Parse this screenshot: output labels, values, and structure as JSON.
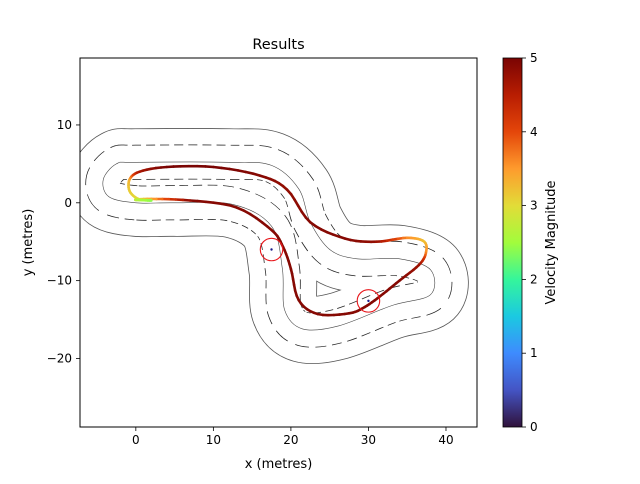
{
  "chart_data": {
    "type": "line",
    "title": "Results",
    "xlabel": "x (metres)",
    "ylabel": "y (metres)",
    "xlim": [
      -7.2,
      44.0
    ],
    "ylim": [
      -28.8,
      18.6
    ],
    "xticks": [
      0,
      10,
      20,
      30,
      40
    ],
    "yticks": [
      10,
      0,
      -10,
      -20
    ],
    "xtick_labels": [
      "0",
      "10",
      "20",
      "30",
      "40"
    ],
    "ytick_labels": [
      "10",
      "0",
      "−10",
      "−20"
    ],
    "grid": false,
    "colorbar": {
      "label": "Velocity Magnitude",
      "range": [
        0,
        5
      ],
      "ticks": [
        0,
        1,
        2,
        3,
        4,
        5
      ],
      "tick_labels": [
        "0",
        "1",
        "2",
        "3",
        "4",
        "5"
      ],
      "colormap": "turbo"
    },
    "track": {
      "centerline": [
        [
          0,
          0
        ],
        [
          -3.5,
          0.8
        ],
        [
          -4.2,
          3
        ],
        [
          -2.5,
          5
        ],
        [
          0,
          5.2
        ],
        [
          12,
          5.2
        ],
        [
          17.5,
          4.8
        ],
        [
          21,
          1.8
        ],
        [
          22.5,
          -2.5
        ],
        [
          25,
          -6
        ],
        [
          28.5,
          -7.2
        ],
        [
          34,
          -7.2
        ],
        [
          38,
          -8.6
        ],
        [
          38,
          -11.8
        ],
        [
          33,
          -13.2
        ],
        [
          26.2,
          -15.8
        ],
        [
          21.5,
          -16.2
        ],
        [
          19.2,
          -13.8
        ],
        [
          18.9,
          -8.5
        ],
        [
          17.5,
          -3
        ],
        [
          12.5,
          -0.2
        ],
        [
          5,
          0
        ],
        [
          0,
          0
        ]
      ],
      "half_width": 2.2,
      "outer_offset": 4.3
    },
    "series": [
      {
        "x": [
          2,
          0.3,
          -0.8,
          -0.8,
          0.5,
          4,
          10,
          16,
          19.5,
          22.5,
          27,
          31,
          35,
          37.2,
          37.4,
          36.5,
          34,
          31.5,
          29.5,
          27.5,
          23.5,
          21,
          20,
          19,
          17.5,
          13,
          7,
          2,
          0,
          0.5,
          2
        ],
        "y": [
          0.3,
          0.5,
          1.5,
          3,
          4,
          4.6,
          4.6,
          3.5,
          1.7,
          -2.5,
          -4.6,
          -5,
          -4.5,
          -5,
          -6.5,
          -8,
          -10,
          -12,
          -13.4,
          -14.2,
          -14.3,
          -12.5,
          -8.5,
          -5.7,
          -3.5,
          -0.6,
          0.3,
          0.5,
          0.4,
          0.35,
          0.3
        ],
        "v": [
          2.2,
          3.0,
          3.1,
          3.3,
          4.6,
          5,
          5,
          4.9,
          4.8,
          4.9,
          4.9,
          4.8,
          3.6,
          3.2,
          3.6,
          4.7,
          4.9,
          4.9,
          4.9,
          4.9,
          4.9,
          4.9,
          4.9,
          4.9,
          4.9,
          4.9,
          4.9,
          3.4,
          2.8,
          2.6,
          2.4
        ]
      }
    ],
    "obstacles": [
      {
        "x": 17.5,
        "y": -6.0,
        "r": 1.45
      },
      {
        "x": 30.0,
        "y": -12.6,
        "r": 1.45
      }
    ]
  }
}
